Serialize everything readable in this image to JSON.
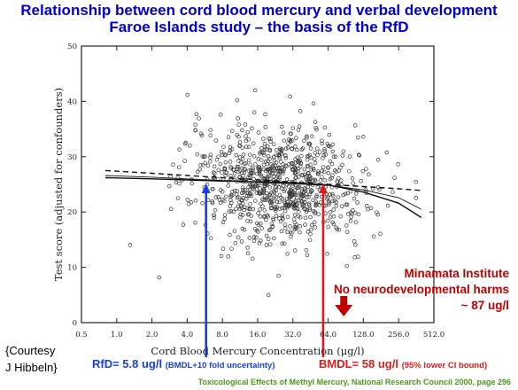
{
  "slide": {
    "title_line1": "Relationship between cord blood mercury and verbal development",
    "title_line2": "Faroe Islands study – the basis of the RfD",
    "courtesy_line1": "{Courtesy",
    "courtesy_line2": "J Hibbeln}",
    "minamata_line1": "Minamata Institute",
    "minamata_line2": "No neurodevelopmental harms",
    "minamata_line3": "~ 87 ug/l",
    "rfd_main": "RfD= 5.8 ug/l",
    "rfd_note": "(BMDL+10 fold uncertainty)",
    "bmdl_main": "BMDL= 58 ug/l",
    "bmdl_note": "(95% lower CI bound)",
    "source": "Toxicological Effects of Methyl Mercury, National Research Council 2000, page 296",
    "colors": {
      "title": "#0000cc",
      "rfd": "#1a3fe0",
      "bmdl": "#e01a1a",
      "minamata": "#c00000",
      "source": "#4a9a18"
    }
  },
  "chart_data": {
    "type": "scatter",
    "xlabel": "Cord Blood Mercury Concentration (μg/l)",
    "ylabel": "Test score (adjusted for confounders)",
    "x_scale": "log2",
    "x_ticks": [
      "0.5",
      "1.0",
      "2.0",
      "4.0",
      "8.0",
      "16.0",
      "32.0",
      "64.0",
      "128.0",
      "256.0",
      "512.0"
    ],
    "x_tick_values": [
      0.5,
      1,
      2,
      4,
      8,
      16,
      32,
      64,
      128,
      256,
      512
    ],
    "xlim": [
      0.5,
      512
    ],
    "y_ticks": [
      "0",
      "10",
      "20",
      "30",
      "40",
      "50"
    ],
    "y_tick_values": [
      0,
      10,
      20,
      30,
      40,
      50
    ],
    "ylim": [
      0,
      50
    ],
    "scatter_points": "approx. 900 points, centered near 24 μg/l, scores 5–42",
    "fitted_curves": [
      {
        "style": "solid",
        "points": [
          [
            0.8,
            26.2
          ],
          [
            2,
            26.0
          ],
          [
            4,
            25.8
          ],
          [
            8,
            25.6
          ],
          [
            16,
            25.5
          ],
          [
            32,
            25.3
          ],
          [
            64,
            24.9
          ],
          [
            128,
            23.6
          ],
          [
            256,
            21.6
          ],
          [
            400,
            19.0
          ]
        ]
      },
      {
        "style": "dashed",
        "points": [
          [
            0.8,
            27.5
          ],
          [
            2,
            27.0
          ],
          [
            4,
            26.6
          ],
          [
            8,
            26.2
          ],
          [
            16,
            25.8
          ],
          [
            32,
            25.4
          ],
          [
            64,
            25.0
          ],
          [
            128,
            24.6
          ],
          [
            256,
            24.2
          ],
          [
            400,
            23.9
          ]
        ]
      },
      {
        "style": "thin",
        "points": [
          [
            0.8,
            26.6
          ],
          [
            2,
            26.3
          ],
          [
            4,
            26.0
          ],
          [
            8,
            25.7
          ],
          [
            16,
            25.4
          ],
          [
            32,
            25.1
          ],
          [
            64,
            24.8
          ],
          [
            128,
            24.0
          ],
          [
            256,
            22.6
          ],
          [
            400,
            20.5
          ]
        ]
      }
    ],
    "markers": [
      {
        "label": "RfD",
        "x": 5.8,
        "color": "#1a3fe0",
        "style": "arrow-up"
      },
      {
        "label": "BMDL",
        "x": 58,
        "color": "#e01a1a",
        "style": "arrow-up"
      },
      {
        "label": "Minamata",
        "x": 87,
        "color": "#c00000",
        "style": "thick-arrow-down"
      }
    ]
  }
}
